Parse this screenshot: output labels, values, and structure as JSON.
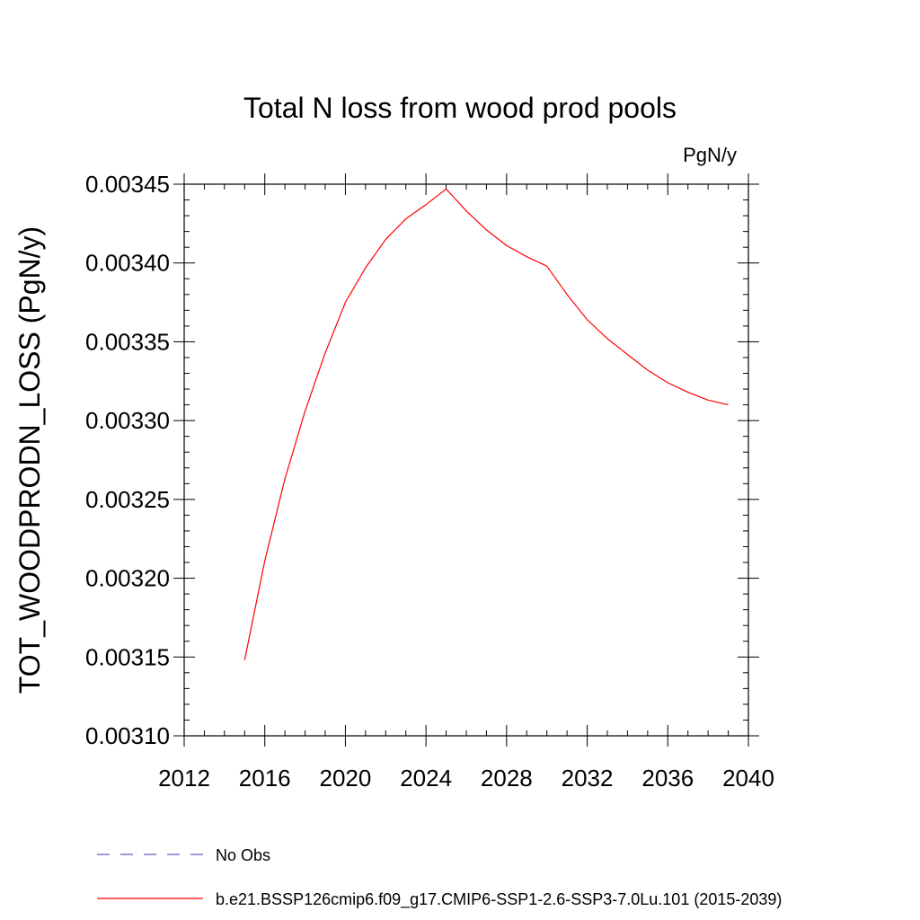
{
  "chart_data": {
    "type": "line",
    "title": "Total N loss from wood prod pools",
    "units": "PgN/y",
    "ylabel": "TOT_WOODPRODN_LOSS  (PgN/y)",
    "xlabel": "",
    "xlim": [
      2012,
      2040
    ],
    "ylim": [
      0.0031,
      0.00345
    ],
    "x_ticks": [
      2012,
      2016,
      2020,
      2024,
      2028,
      2032,
      2036,
      2040
    ],
    "y_ticks": [
      "0.00310",
      "0.00315",
      "0.00320",
      "0.00325",
      "0.00330",
      "0.00335",
      "0.00340",
      "0.00345"
    ],
    "grid": false,
    "legend_position": "bottom",
    "series": [
      {
        "name": "b.e21.BSSP126cmip6.f09_g17.CMIP6-SSP1-2.6-SSP3-7.0Lu.101 (2015-2039)",
        "color": "#ff0000",
        "dash": "solid",
        "x": [
          2015,
          2016,
          2017,
          2018,
          2019,
          2020,
          2021,
          2022,
          2023,
          2024,
          2025,
          2026,
          2027,
          2028,
          2029,
          2030,
          2031,
          2032,
          2033,
          2034,
          2035,
          2036,
          2037,
          2038,
          2039
        ],
        "values": [
          0.003148,
          0.003211,
          0.003263,
          0.003306,
          0.003343,
          0.003375,
          0.003397,
          0.003415,
          0.003428,
          0.003437,
          0.003447,
          0.003433,
          0.003421,
          0.003411,
          0.003404,
          0.003398,
          0.00338,
          0.003364,
          0.003352,
          0.003342,
          0.003332,
          0.003324,
          0.003318,
          0.003313,
          0.00331
        ]
      },
      {
        "name": "No Obs",
        "color": "#6a5acd",
        "dash": "dashed",
        "x": [],
        "values": []
      }
    ],
    "legend": [
      {
        "label": "No Obs",
        "color": "#6a5acd",
        "dash": "dashed"
      },
      {
        "label": "b.e21.BSSP126cmip6.f09_g17.CMIP6-SSP1-2.6-SSP3-7.0Lu.101 (2015-2039)",
        "color": "#ff0000",
        "dash": "solid"
      }
    ]
  }
}
